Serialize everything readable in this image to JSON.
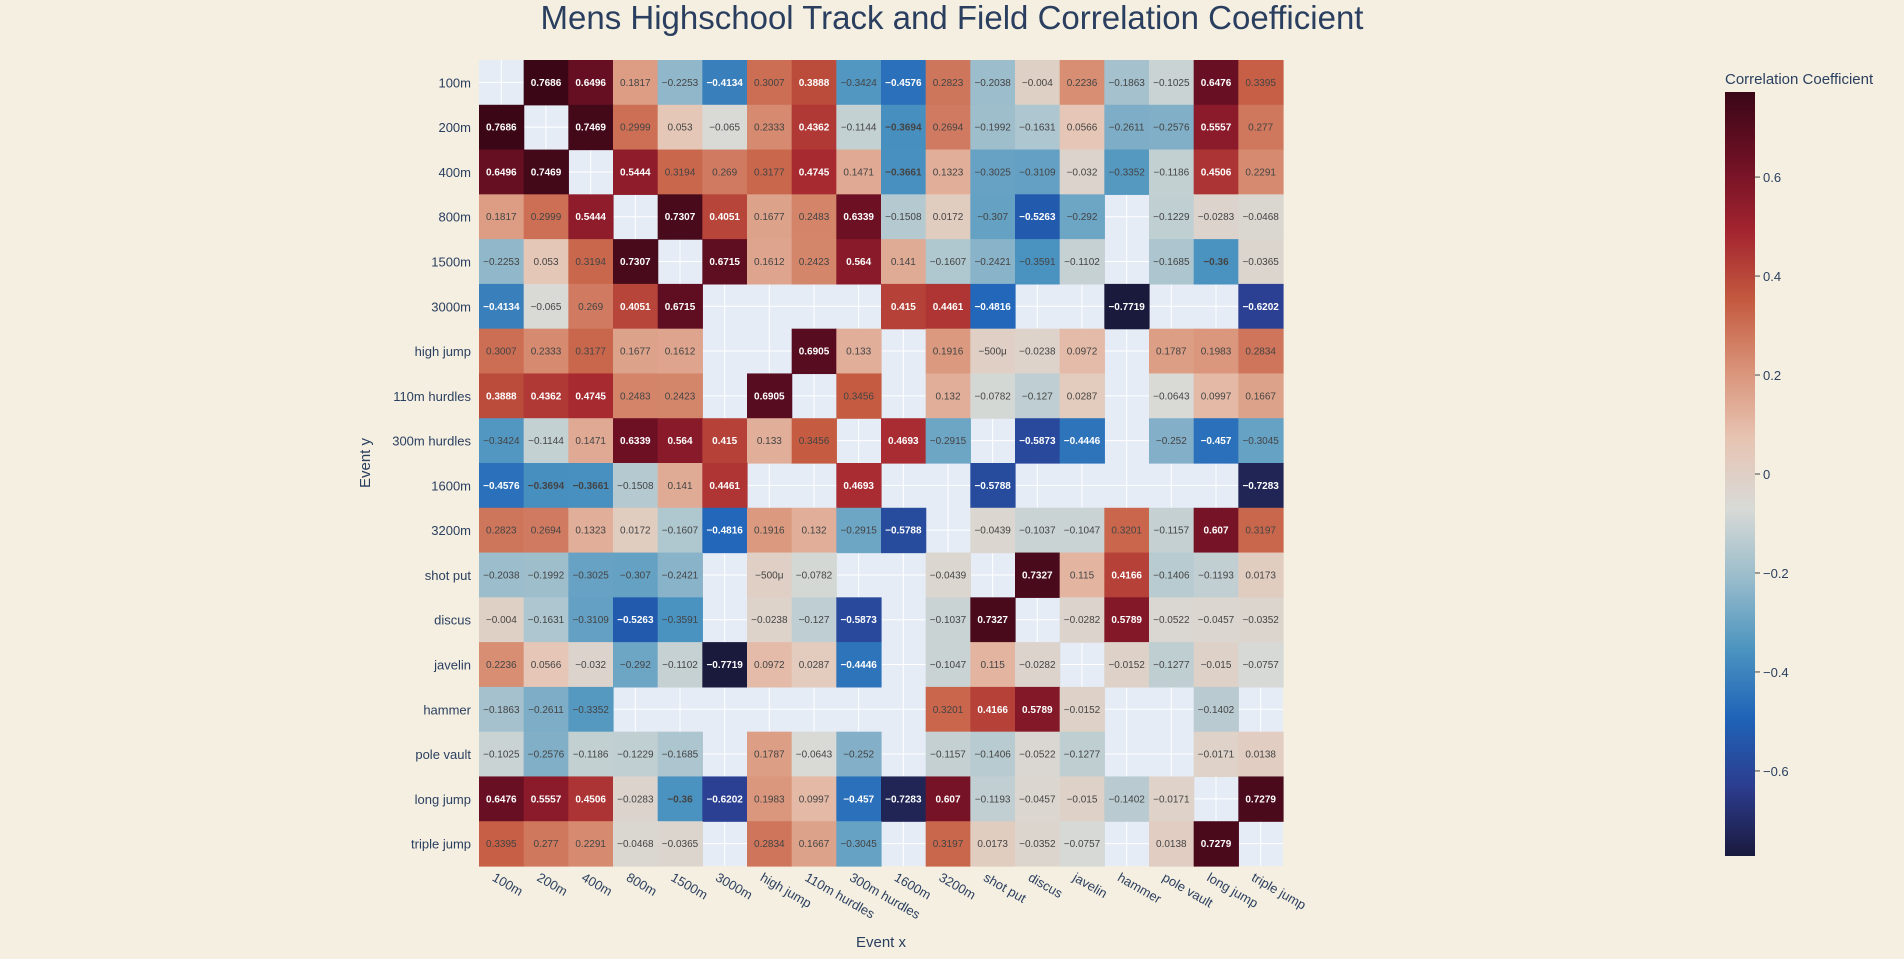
{
  "chart_data": {
    "type": "heatmap",
    "title": "Mens Highschool Track and Field Correlation Coefficient",
    "xlabel": "Event x",
    "ylabel": "Event y",
    "colorbar_title": "Correlation Coefficient",
    "colorbar_ticks": [
      "0.6",
      "0.4",
      "0.2",
      "0",
      "−0.2",
      "−0.4",
      "−0.6"
    ],
    "colorbar_tick_values": [
      0.6,
      0.4,
      0.2,
      0,
      -0.2,
      -0.4,
      -0.6
    ],
    "zrange": [
      -0.7719,
      0.7719
    ],
    "colorscale": [
      "#1a1a3d",
      "#2c3d8f",
      "#1f64b8",
      "#4d95c0",
      "#99bccb",
      "#d8dad6",
      "#e7c4b3",
      "#d99378",
      "#c45a40",
      "#a3242f",
      "#6e1024",
      "#3a0717"
    ],
    "grid": true,
    "x_categories": [
      "100m",
      "200m",
      "400m",
      "800m",
      "1500m",
      "3000m",
      "high jump",
      "110m hurdles",
      "300m hurdles",
      "1600m",
      "3200m",
      "shot put",
      "discus",
      "javelin",
      "hammer",
      "pole vault",
      "long jump",
      "triple jump"
    ],
    "y_categories": [
      "100m",
      "200m",
      "400m",
      "800m",
      "1500m",
      "3000m",
      "high jump",
      "110m hurdles",
      "300m hurdles",
      "1600m",
      "3200m",
      "shot put",
      "discus",
      "javelin",
      "hammer",
      "pole vault",
      "long jump",
      "triple jump"
    ],
    "z": [
      [
        null,
        0.7686,
        0.6496,
        0.1817,
        -0.2253,
        -0.4134,
        0.3007,
        0.3888,
        -0.3424,
        -0.4576,
        0.2823,
        -0.2038,
        -0.004,
        0.2236,
        -0.1863,
        -0.1025,
        0.6476,
        0.3395
      ],
      [
        0.7686,
        null,
        0.7469,
        0.2999,
        0.053,
        -0.065,
        0.2333,
        0.4362,
        -0.1144,
        -0.3694,
        0.2694,
        -0.1992,
        -0.1631,
        0.0566,
        -0.2611,
        -0.2576,
        0.5557,
        0.277
      ],
      [
        0.6496,
        0.7469,
        null,
        0.5444,
        0.3194,
        0.269,
        0.3177,
        0.4745,
        0.1471,
        -0.3661,
        0.1323,
        -0.3025,
        -0.3109,
        -0.032,
        -0.3352,
        -0.1186,
        0.4506,
        0.2291
      ],
      [
        0.1817,
        0.2999,
        0.5444,
        null,
        0.7307,
        0.4051,
        0.1677,
        0.2483,
        0.6339,
        -0.1508,
        0.0172,
        -0.307,
        -0.5263,
        -0.292,
        null,
        -0.1229,
        -0.0283,
        -0.0468
      ],
      [
        -0.2253,
        0.053,
        0.3194,
        0.7307,
        null,
        0.6715,
        0.1612,
        0.2423,
        0.564,
        0.141,
        -0.1607,
        -0.2421,
        -0.3591,
        -0.1102,
        null,
        -0.1685,
        -0.36,
        -0.0365
      ],
      [
        -0.4134,
        -0.065,
        0.269,
        0.4051,
        0.6715,
        null,
        null,
        null,
        null,
        0.415,
        0.4461,
        -0.4816,
        null,
        null,
        -0.7719,
        null,
        null,
        -0.6202
      ],
      [
        0.3007,
        0.2333,
        0.3177,
        0.1677,
        0.1612,
        null,
        null,
        0.6905,
        0.133,
        null,
        0.1916,
        -0.0005,
        -0.0238,
        0.0972,
        null,
        0.1787,
        0.1983,
        0.2834
      ],
      [
        0.3888,
        0.4362,
        0.4745,
        0.2483,
        0.2423,
        null,
        0.6905,
        null,
        0.3456,
        null,
        0.132,
        -0.0782,
        -0.127,
        0.0287,
        null,
        -0.0643,
        0.0997,
        0.1667
      ],
      [
        -0.3424,
        -0.1144,
        0.1471,
        0.6339,
        0.564,
        0.415,
        0.133,
        0.3456,
        null,
        0.4693,
        -0.2915,
        null,
        -0.5873,
        -0.4446,
        null,
        -0.252,
        -0.457,
        -0.3045
      ],
      [
        -0.4576,
        -0.3694,
        -0.3661,
        -0.1508,
        0.141,
        0.4461,
        null,
        null,
        0.4693,
        null,
        null,
        -0.5788,
        null,
        null,
        null,
        null,
        null,
        -0.7283
      ],
      [
        0.2823,
        0.2694,
        0.1323,
        0.0172,
        -0.1607,
        -0.4816,
        0.1916,
        0.132,
        -0.2915,
        -0.5788,
        null,
        -0.0439,
        -0.1037,
        -0.1047,
        0.3201,
        -0.1157,
        0.607,
        0.3197
      ],
      [
        -0.2038,
        -0.1992,
        -0.3025,
        -0.307,
        -0.2421,
        null,
        -0.0005,
        -0.0782,
        null,
        null,
        -0.0439,
        null,
        0.7327,
        0.115,
        0.4166,
        -0.1406,
        -0.1193,
        0.0173
      ],
      [
        -0.004,
        -0.1631,
        -0.3109,
        -0.5263,
        -0.3591,
        null,
        -0.0238,
        -0.127,
        -0.5873,
        null,
        -0.1037,
        0.7327,
        null,
        -0.0282,
        0.5789,
        -0.0522,
        -0.0457,
        -0.0352
      ],
      [
        0.2236,
        0.0566,
        -0.032,
        -0.292,
        -0.1102,
        -0.7719,
        0.0972,
        0.0287,
        -0.4446,
        null,
        -0.1047,
        0.115,
        -0.0282,
        null,
        -0.0152,
        -0.1277,
        -0.015,
        -0.0757
      ],
      [
        -0.1863,
        -0.2611,
        -0.3352,
        null,
        null,
        null,
        null,
        null,
        null,
        null,
        0.3201,
        0.4166,
        0.5789,
        -0.0152,
        null,
        null,
        -0.1402,
        null
      ],
      [
        -0.1025,
        -0.2576,
        -0.1186,
        -0.1229,
        -0.1685,
        null,
        0.1787,
        -0.0643,
        -0.252,
        null,
        -0.1157,
        -0.1406,
        -0.0522,
        -0.1277,
        null,
        null,
        -0.0171,
        0.0138
      ],
      [
        0.6476,
        0.5557,
        0.4506,
        -0.0283,
        -0.36,
        -0.6202,
        0.1983,
        0.0997,
        -0.457,
        -0.7283,
        0.607,
        -0.1193,
        -0.0457,
        -0.015,
        -0.1402,
        -0.0171,
        null,
        0.7279
      ],
      [
        0.3395,
        0.277,
        0.2291,
        -0.0468,
        -0.0365,
        null,
        0.2834,
        0.1667,
        -0.3045,
        null,
        0.3197,
        0.0173,
        -0.0352,
        -0.0757,
        null,
        0.0138,
        0.7279,
        null
      ]
    ],
    "text": [
      [
        "",
        "0.7686",
        "0.6496",
        "0.1817",
        "−0.2253",
        "−0.4134",
        "0.3007",
        "0.3888",
        "−0.3424",
        "−0.4576",
        "0.2823",
        "−0.2038",
        "−0.004",
        "0.2236",
        "−0.1863",
        "−0.1025",
        "0.6476",
        "0.3395"
      ],
      [
        "0.7686",
        "",
        "0.7469",
        "0.2999",
        "0.053",
        "−0.065",
        "0.2333",
        "0.4362",
        "−0.1144",
        "−0.3694",
        "0.2694",
        "−0.1992",
        "−0.1631",
        "0.0566",
        "−0.2611",
        "−0.2576",
        "0.5557",
        "0.277"
      ],
      [
        "0.6496",
        "0.7469",
        "",
        "0.5444",
        "0.3194",
        "0.269",
        "0.3177",
        "0.4745",
        "0.1471",
        "−0.3661",
        "0.1323",
        "−0.3025",
        "−0.3109",
        "−0.032",
        "−0.3352",
        "−0.1186",
        "0.4506",
        "0.2291"
      ],
      [
        "0.1817",
        "0.2999",
        "0.5444",
        "",
        "0.7307",
        "0.4051",
        "0.1677",
        "0.2483",
        "0.6339",
        "−0.1508",
        "0.0172",
        "−0.307",
        "−0.5263",
        "−0.292",
        "",
        "−0.1229",
        "−0.0283",
        "−0.0468"
      ],
      [
        "−0.2253",
        "0.053",
        "0.3194",
        "0.7307",
        "",
        "0.6715",
        "0.1612",
        "0.2423",
        "0.564",
        "0.141",
        "−0.1607",
        "−0.2421",
        "−0.3591",
        "−0.1102",
        "",
        "−0.1685",
        "−0.36",
        "−0.0365"
      ],
      [
        "−0.4134",
        "−0.065",
        "0.269",
        "0.4051",
        "0.6715",
        "",
        "",
        "",
        "",
        "0.415",
        "0.4461",
        "−0.4816",
        "",
        "",
        "−0.7719",
        "",
        "",
        "−0.6202"
      ],
      [
        "0.3007",
        "0.2333",
        "0.3177",
        "0.1677",
        "0.1612",
        "",
        "",
        "0.6905",
        "0.133",
        "",
        "0.1916",
        "−500μ",
        "−0.0238",
        "0.0972",
        "",
        "0.1787",
        "0.1983",
        "0.2834"
      ],
      [
        "0.3888",
        "0.4362",
        "0.4745",
        "0.2483",
        "0.2423",
        "",
        "0.6905",
        "",
        "0.3456",
        "",
        "0.132",
        "−0.0782",
        "−0.127",
        "0.0287",
        "",
        "−0.0643",
        "0.0997",
        "0.1667"
      ],
      [
        "−0.3424",
        "−0.1144",
        "0.1471",
        "0.6339",
        "0.564",
        "0.415",
        "0.133",
        "0.3456",
        "",
        "0.4693",
        "−0.2915",
        "",
        "−0.5873",
        "−0.4446",
        "",
        "−0.252",
        "−0.457",
        "−0.3045"
      ],
      [
        "−0.4576",
        "−0.3694",
        "−0.3661",
        "−0.1508",
        "0.141",
        "0.4461",
        "",
        "",
        "0.4693",
        "",
        "",
        "−0.5788",
        "",
        "",
        "",
        "",
        "",
        "−0.7283"
      ],
      [
        "0.2823",
        "0.2694",
        "0.1323",
        "0.0172",
        "−0.1607",
        "−0.4816",
        "0.1916",
        "0.132",
        "−0.2915",
        "−0.5788",
        "",
        "−0.0439",
        "−0.1037",
        "−0.1047",
        "0.3201",
        "−0.1157",
        "0.607",
        "0.3197"
      ],
      [
        "−0.2038",
        "−0.1992",
        "−0.3025",
        "−0.307",
        "−0.2421",
        "",
        "−500μ",
        "−0.0782",
        "",
        "",
        "−0.0439",
        "",
        "0.7327",
        "0.115",
        "0.4166",
        "−0.1406",
        "−0.1193",
        "0.0173"
      ],
      [
        "−0.004",
        "−0.1631",
        "−0.3109",
        "−0.5263",
        "−0.3591",
        "",
        "−0.0238",
        "−0.127",
        "−0.5873",
        "",
        "−0.1037",
        "0.7327",
        "",
        "−0.0282",
        "0.5789",
        "−0.0522",
        "−0.0457",
        "−0.0352"
      ],
      [
        "0.2236",
        "0.0566",
        "−0.032",
        "−0.292",
        "−0.1102",
        "−0.7719",
        "0.0972",
        "0.0287",
        "−0.4446",
        "",
        "−0.1047",
        "0.115",
        "−0.0282",
        "",
        "−0.0152",
        "−0.1277",
        "−0.015",
        "−0.0757"
      ],
      [
        "−0.1863",
        "−0.2611",
        "−0.3352",
        "",
        "",
        "",
        "",
        "",
        "",
        "",
        "0.3201",
        "0.4166",
        "0.5789",
        "−0.0152",
        "",
        "",
        "−0.1402",
        ""
      ],
      [
        "−0.1025",
        "−0.2576",
        "−0.1186",
        "−0.1229",
        "−0.1685",
        "",
        "0.1787",
        "−0.0643",
        "−0.252",
        "",
        "−0.1157",
        "−0.1406",
        "−0.0522",
        "−0.1277",
        "",
        "",
        "−0.0171",
        "0.0138"
      ],
      [
        "0.6476",
        "0.5557",
        "0.4506",
        "−0.0283",
        "−0.36",
        "−0.6202",
        "0.1983",
        "0.0997",
        "−0.457",
        "−0.7283",
        "0.607",
        "−0.1193",
        "−0.0457",
        "−0.015",
        "−0.1402",
        "−0.0171",
        "",
        "0.7279"
      ],
      [
        "0.3395",
        "0.277",
        "0.2291",
        "−0.0468",
        "−0.0365",
        "",
        "0.2834",
        "0.1667",
        "−0.3045",
        "",
        "0.3197",
        "0.0173",
        "−0.0352",
        "−0.0757",
        "",
        "0.0138",
        "0.7279",
        ""
      ]
    ]
  }
}
